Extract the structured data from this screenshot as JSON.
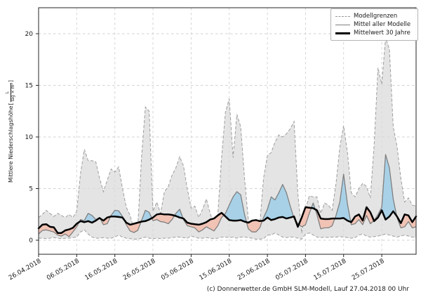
{
  "footer": {
    "credit": "(c) Donnerwetter.de GmbH SLM-Modell, Lauf 27.04.2018 00 Uhr"
  },
  "chart_data": {
    "type": "line",
    "ylabel": {
      "text": "Mittlere Niederschlagshöhe",
      "bracket_open": "[",
      "unit_numerator": "L",
      "unit_denominator": "Tag × m²",
      "bracket_close": "]"
    },
    "x_ticklabels": [
      "26.04.2018",
      "06.05.2018",
      "16.05.2018",
      "26.05.2018",
      "05.06.2018",
      "15.06.2018",
      "25.06.2018",
      "05.07.2018",
      "15.07.2018",
      "25.07.2018"
    ],
    "x_tick_days": [
      0,
      10,
      20,
      30,
      40,
      50,
      60,
      70,
      80,
      90
    ],
    "y_ticks": [
      0,
      5,
      10,
      15,
      20
    ],
    "y_ticklabels": [
      "0",
      "5",
      "10",
      "15",
      "20"
    ],
    "ylim": [
      -1.35,
      22.5
    ],
    "grid": true,
    "legend": {
      "position": "top-right",
      "entries": [
        {
          "label": "Modellgrenzen",
          "style": "dashed-gray"
        },
        {
          "label": "Mittel aller Modelle",
          "style": "solid-gray"
        },
        {
          "label": "Mittelwert 30 Jahre",
          "style": "solid-black-thick"
        }
      ]
    },
    "colors": {
      "band_fill": "#d9d9d9",
      "band_edge": "#9e9e9e",
      "above_fill": "#a8d1e7",
      "below_fill": "#f1c3b5",
      "mean_line": "#7f7f7f",
      "mean30_line": "#000000",
      "grid": "#d2d2d2",
      "spine": "#262626"
    },
    "series": [
      {
        "name": "Modellgrenze oben",
        "values": [
          2.2,
          2.5,
          2.9,
          2.6,
          2.3,
          2.6,
          2.4,
          2.2,
          2.5,
          2.2,
          2.8,
          6.5,
          8.8,
          7.7,
          7.7,
          7.6,
          6.0,
          4.7,
          5.8,
          6.9,
          6.6,
          7.1,
          5.0,
          3.2,
          2.4,
          1.0,
          1.2,
          8.0,
          12.9,
          12.5,
          2.8,
          3.7,
          2.6,
          4.7,
          5.2,
          6.3,
          7.0,
          8.1,
          7.2,
          5.0,
          3.1,
          3.3,
          2.2,
          3.0,
          4.0,
          2.6,
          1.5,
          2.5,
          8.0,
          12.4,
          13.7,
          8.0,
          12.2,
          11.0,
          6.0,
          2.0,
          0.9,
          0.9,
          1.5,
          6.0,
          8.2,
          8.5,
          9.5,
          10.2,
          10.0,
          10.3,
          10.8,
          11.5,
          4.5,
          0.7,
          3.0,
          4.3,
          4.2,
          4.2,
          2.6,
          3.6,
          3.4,
          2.9,
          5.5,
          9.0,
          11.1,
          8.5,
          4.6,
          4.2,
          5.0,
          5.5,
          5.2,
          4.1,
          9.2,
          16.7,
          15.1,
          19.6,
          18.5,
          11.0,
          9.1,
          6.0,
          3.7,
          4.1,
          3.4,
          3.3
        ]
      },
      {
        "name": "Modellgrenze unten",
        "values": [
          0.2,
          0.2,
          0.15,
          0.2,
          0.25,
          0.2,
          0.15,
          0.2,
          0.2,
          0.25,
          0.3,
          0.8,
          1.0,
          0.6,
          0.3,
          0.2,
          0.2,
          0.25,
          0.2,
          0.2,
          0.3,
          0.5,
          0.3,
          0.2,
          0.15,
          0.1,
          0.1,
          0.2,
          0.3,
          0.2,
          0.15,
          0.2,
          0.15,
          0.2,
          0.2,
          0.25,
          0.3,
          0.3,
          0.25,
          0.2,
          0.4,
          0.3,
          0.2,
          0.2,
          0.25,
          0.2,
          0.15,
          0.2,
          0.3,
          0.3,
          0.25,
          0.3,
          0.2,
          0.3,
          0.3,
          0.25,
          0.2,
          0.1,
          0.1,
          0.15,
          0.5,
          0.5,
          0.7,
          0.5,
          0.3,
          0.25,
          0.3,
          0.3,
          0.2,
          0.1,
          0.6,
          0.7,
          0.5,
          0.3,
          0.25,
          0.3,
          0.25,
          0.3,
          0.3,
          0.35,
          0.3,
          0.25,
          0.2,
          0.25,
          0.5,
          0.6,
          0.4,
          0.3,
          0.35,
          0.4,
          0.5,
          0.6,
          0.5,
          0.4,
          0.3,
          0.4,
          0.5,
          0.4,
          0.3,
          0.25
        ]
      },
      {
        "name": "Mittel aller Modelle",
        "values": [
          0.6,
          0.95,
          1.0,
          0.9,
          0.8,
          0.5,
          0.4,
          0.6,
          0.35,
          0.8,
          1.3,
          2.0,
          1.9,
          2.6,
          2.4,
          2.0,
          2.2,
          1.5,
          1.6,
          2.4,
          2.9,
          2.85,
          2.3,
          1.5,
          0.9,
          0.75,
          0.95,
          1.9,
          2.9,
          2.7,
          1.9,
          2.0,
          1.8,
          1.75,
          1.6,
          2.0,
          2.6,
          3.0,
          2.0,
          1.4,
          1.3,
          1.2,
          0.8,
          1.0,
          1.3,
          1.1,
          0.9,
          1.4,
          2.2,
          2.6,
          3.4,
          4.2,
          4.7,
          4.4,
          2.5,
          1.1,
          0.8,
          0.8,
          1.2,
          2.2,
          3.0,
          4.2,
          3.9,
          4.6,
          5.4,
          4.6,
          3.3,
          2.1,
          1.6,
          1.3,
          1.5,
          2.6,
          3.6,
          2.5,
          1.1,
          1.2,
          1.2,
          1.4,
          2.4,
          3.7,
          6.4,
          3.5,
          1.5,
          1.6,
          2.0,
          1.5,
          2.4,
          1.6,
          1.9,
          2.5,
          3.2,
          8.3,
          7.0,
          4.0,
          2.2,
          1.2,
          1.3,
          1.8,
          1.2,
          1.3
        ]
      },
      {
        "name": "Mittelwert 30 Jahre",
        "values": [
          1.15,
          1.5,
          1.55,
          1.3,
          1.25,
          0.7,
          0.7,
          0.95,
          1.05,
          1.2,
          1.6,
          1.85,
          1.75,
          1.85,
          1.7,
          1.9,
          2.15,
          1.9,
          2.2,
          2.3,
          2.3,
          2.25,
          2.2,
          1.7,
          1.5,
          1.6,
          1.7,
          1.8,
          1.85,
          2.0,
          2.2,
          2.5,
          2.55,
          2.5,
          2.5,
          2.45,
          2.35,
          2.2,
          2.1,
          1.7,
          1.6,
          1.55,
          1.5,
          1.6,
          1.75,
          2.0,
          2.1,
          2.4,
          2.65,
          2.3,
          1.95,
          1.9,
          1.9,
          1.95,
          1.8,
          1.7,
          1.9,
          1.95,
          1.85,
          1.9,
          2.2,
          1.95,
          2.05,
          2.2,
          2.25,
          2.1,
          2.2,
          2.3,
          1.3,
          2.2,
          3.2,
          3.15,
          3.1,
          2.9,
          2.1,
          2.05,
          2.05,
          2.1,
          2.1,
          2.1,
          2.15,
          1.9,
          1.75,
          2.3,
          2.5,
          1.9,
          3.2,
          2.7,
          1.85,
          2.2,
          2.9,
          2.0,
          2.3,
          2.8,
          2.3,
          1.65,
          2.5,
          2.4,
          1.75,
          2.3
        ]
      }
    ]
  }
}
